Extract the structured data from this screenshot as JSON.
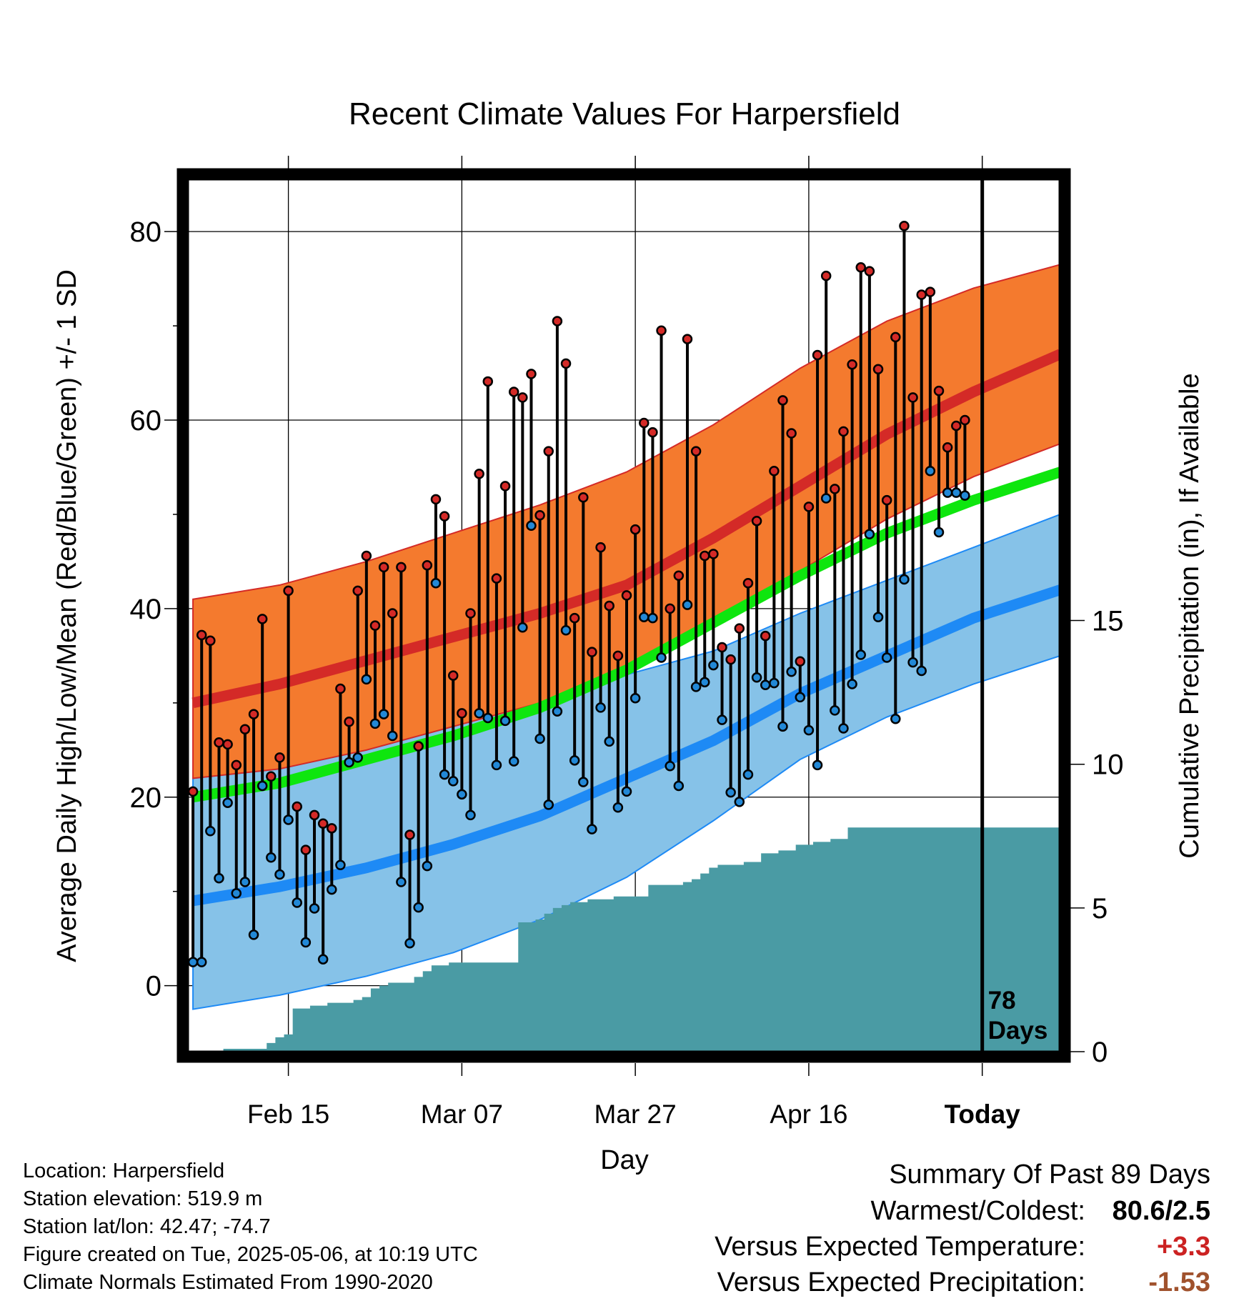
{
  "chart_data": {
    "type": "line",
    "title": "Recent Climate Values For Harpersfield",
    "xlabel": "Day",
    "ylabel": "Average Daily High/Low/Mean (Red/Blue/Green) +/- 1 SD",
    "y2label": "Cumulative Precipitation (in), If Available",
    "x_tick_labels": [
      "Feb 15",
      "Mar 07",
      "Mar 27",
      "Apr 16",
      "Today"
    ],
    "x_tick_days": [
      11,
      31,
      51,
      71,
      91
    ],
    "y_ticks": [
      0,
      20,
      40,
      60,
      80
    ],
    "y2_ticks": [
      0,
      5,
      10,
      15
    ],
    "ylim": [
      -7,
      86
    ],
    "xlim": [
      -0.5,
      100.5
    ],
    "y2lim": [
      0,
      30.5
    ],
    "today_marker": {
      "day": 91,
      "label_line1": "78",
      "label_line2": "Days"
    },
    "grid": true,
    "colors": {
      "high_band": "#f47a2e",
      "high_mean": "#d42a27",
      "low_band": "#86c2e8",
      "low_mean": "#1e8af5",
      "mean_line": "#0ee60e",
      "precip": "#4a9ba4",
      "high_marker": "#d42a27",
      "low_marker": "#2288d6"
    },
    "normal_days": [
      0,
      10,
      20,
      30,
      40,
      50,
      60,
      70,
      80,
      90,
      100
    ],
    "normal_high_mean": [
      30,
      32,
      34.5,
      37,
      39.5,
      42.5,
      47.5,
      53,
      58.5,
      63,
      67
    ],
    "normal_high_upper": [
      41,
      42.5,
      45,
      48,
      51,
      54.5,
      59.5,
      65.5,
      70.5,
      74,
      76.5
    ],
    "normal_high_lower": [
      22,
      23,
      25,
      27.5,
      30,
      34,
      38,
      44,
      49.5,
      54,
      57.5
    ],
    "normal_low_mean": [
      9,
      10.5,
      12.5,
      15,
      18,
      22,
      26,
      31,
      35,
      39,
      42
    ],
    "normal_low_upper": [
      22,
      23,
      25,
      27.5,
      30.5,
      33,
      35.5,
      39.5,
      43,
      46.5,
      50
    ],
    "normal_low_lower": [
      -2.5,
      -1,
      1,
      3.5,
      7,
      11.5,
      17.5,
      24,
      28.5,
      32,
      35
    ],
    "normal_mean": [
      20,
      21.5,
      24,
      26.5,
      29.5,
      33.5,
      38.5,
      43.5,
      48,
      51.5,
      54.5
    ],
    "precip_cum": [
      0,
      0,
      0,
      0,
      0.1,
      0.1,
      0.1,
      0.1,
      0.1,
      0.3,
      0.5,
      0.6,
      1.5,
      1.5,
      1.6,
      1.6,
      1.7,
      1.7,
      1.7,
      1.8,
      1.9,
      2.2,
      2.3,
      2.4,
      2.4,
      2.4,
      2.6,
      2.8,
      3.0,
      3.0,
      3.1,
      3.1,
      3.1,
      3.1,
      3.1,
      3.1,
      3.1,
      3.1,
      4.5,
      4.5,
      4.6,
      4.8,
      5.0,
      5.1,
      5.2,
      5.2,
      5.3,
      5.3,
      5.3,
      5.4,
      5.4,
      5.4,
      5.4,
      5.8,
      5.8,
      5.8,
      5.8,
      5.9,
      6.0,
      6.2,
      6.4,
      6.5,
      6.5,
      6.5,
      6.6,
      6.6,
      6.9,
      6.9,
      7.0,
      7.0,
      7.2,
      7.2,
      7.3,
      7.3,
      7.4,
      7.4,
      7.8,
      7.8,
      7.8,
      7.8,
      7.8,
      7.8,
      7.8,
      7.8,
      7.8,
      7.8,
      7.8,
      7.8,
      7.8,
      7.8,
      7.8,
      7.8,
      7.8,
      7.8,
      7.8,
      7.8,
      7.8,
      7.8,
      7.8,
      7.8,
      7.8
    ],
    "obs_days": [
      0,
      1,
      2,
      3,
      4,
      5,
      6,
      7,
      8,
      9,
      10,
      11,
      12,
      13,
      14,
      15,
      16,
      17,
      18,
      19,
      20,
      21,
      22,
      23,
      24,
      25,
      26,
      27,
      28,
      29,
      30,
      31,
      32,
      33,
      34,
      35,
      36,
      37,
      38,
      39,
      40,
      41,
      42,
      43,
      44,
      45,
      46,
      47,
      48,
      49,
      50,
      51,
      52,
      53,
      54,
      55,
      56,
      57,
      58,
      59,
      60,
      61,
      62,
      63,
      64,
      65,
      66,
      67,
      68,
      69,
      70,
      71,
      72,
      73,
      74,
      75,
      76,
      77,
      78,
      79,
      80,
      81,
      82,
      83,
      84,
      85,
      86,
      87,
      88,
      89
    ],
    "obs_high": [
      20.6,
      37.2,
      36.6,
      25.8,
      25.6,
      23.4,
      27.2,
      28.8,
      38.9,
      22.2,
      24.2,
      41.9,
      19,
      14.4,
      18.1,
      17.2,
      16.7,
      31.5,
      28,
      41.9,
      45.6,
      38.2,
      44.4,
      39.5,
      44.4,
      16,
      25.4,
      44.6,
      51.6,
      49.8,
      32.9,
      28.9,
      39.5,
      54.3,
      64.1,
      43.2,
      53,
      63,
      62.4,
      64.9,
      49.9,
      56.7,
      70.5,
      66,
      39,
      51.8,
      35.4,
      46.5,
      40.3,
      35,
      41.4,
      48.4,
      59.7,
      58.7,
      69.5,
      40,
      43.5,
      68.6,
      56.7,
      45.6,
      45.8,
      35.9,
      34.6,
      37.9,
      42.7,
      49.3,
      37.1,
      54.6,
      62.1,
      58.6,
      34.4,
      50.8,
      66.9,
      75.3,
      52.7,
      58.8,
      65.9,
      76.2,
      75.8,
      65.4,
      51.5,
      68.8,
      80.6,
      62.4,
      73.3,
      73.6,
      63.1,
      57.1,
      59.4,
      60
    ],
    "obs_low": [
      2.5,
      2.5,
      16.4,
      11.4,
      19.4,
      9.8,
      11,
      5.4,
      21.2,
      13.6,
      11.8,
      17.6,
      8.8,
      4.6,
      8.2,
      2.8,
      10.2,
      12.8,
      23.7,
      24.2,
      32.5,
      27.8,
      28.8,
      26.5,
      11,
      4.5,
      8.3,
      12.7,
      42.7,
      22.4,
      21.7,
      20.3,
      18.1,
      28.9,
      28.4,
      23.4,
      28.1,
      23.8,
      38,
      48.8,
      26.2,
      19.2,
      29.1,
      37.7,
      23.9,
      21.6,
      16.6,
      29.5,
      25.9,
      18.9,
      20.6,
      30.5,
      39.1,
      39,
      34.8,
      23.3,
      21.2,
      40.4,
      31.7,
      32.2,
      34,
      28.2,
      20.5,
      19.5,
      22.4,
      32.7,
      31.9,
      32.1,
      27.5,
      33.3,
      30.6,
      27.1,
      23.4,
      51.7,
      29.2,
      27.3,
      32,
      35.1,
      47.9,
      39.1,
      34.8,
      28.3,
      43.1,
      34.3,
      33.4,
      54.6,
      48.1,
      52.3,
      52.3,
      52
    ]
  },
  "info": {
    "location": "Location: Harpersfield",
    "elevation": "Station elevation: 519.9 m",
    "latlon": "Station lat/lon: 42.47; -74.7",
    "created": "Figure created on Tue, 2025-05-06, at 10:19 UTC",
    "normals": "Climate Normals Estimated From 1990-2020"
  },
  "summary": {
    "title": "Summary Of Past 89 Days",
    "warmest_coldest_label": "Warmest/Coldest:",
    "warmest_coldest_value": "80.6/2.5",
    "temp_label": "Versus Expected Temperature:",
    "temp_value": "+3.3",
    "temp_color": "#cc2222",
    "precip_label": "Versus Expected Precipitation:",
    "precip_value": "-1.53",
    "precip_color": "#a0522d"
  }
}
